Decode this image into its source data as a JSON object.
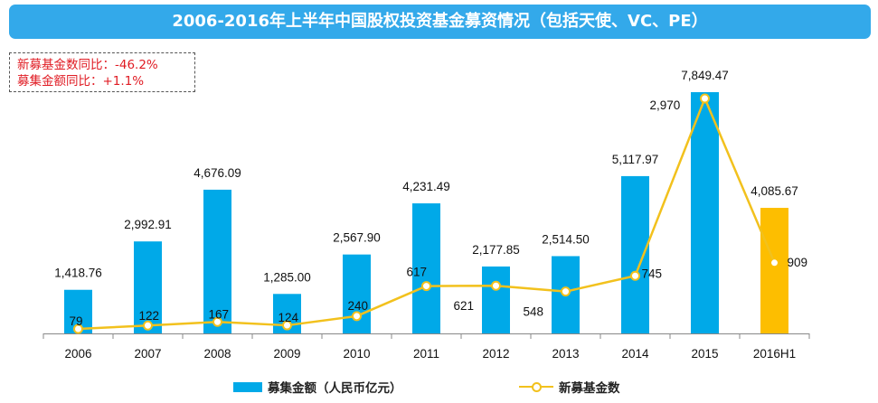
{
  "title": "2006-2016年上半年中国股权投资基金募资情况（包括天使、VC、PE）",
  "notes": [
    "新募基金数同比：-46.2%",
    "募集金额同比：+1.1%"
  ],
  "colors": {
    "title_bg": "#33a9ea",
    "bar": "#00a9e8",
    "bar_highlight": "#fdbe00",
    "line": "#f2c11d",
    "note_text": "#e01b23"
  },
  "chart_data": {
    "type": "bar",
    "title": "2006-2016年上半年中国股权投资基金募资情况（包括天使、VC、PE）",
    "categories": [
      "2006",
      "2007",
      "2008",
      "2009",
      "2010",
      "2011",
      "2012",
      "2013",
      "2014",
      "2015",
      "2016H1"
    ],
    "series": [
      {
        "name": "募集金额（人民币亿元）",
        "type": "bar",
        "axis": "left",
        "values": [
          1418.76,
          2992.91,
          4676.09,
          1285.0,
          2567.9,
          4231.49,
          2177.85,
          2514.5,
          5117.97,
          7849.47,
          4085.67
        ],
        "labels": [
          "1,418.76",
          "2,992.91",
          "4,676.09",
          "1,285.00",
          "2,567.90",
          "4,231.49",
          "2,177.85",
          "2,514.50",
          "5,117.97",
          "7,849.47",
          "4,085.67"
        ]
      },
      {
        "name": "新募基金数",
        "type": "line",
        "axis": "right",
        "values": [
          79,
          122,
          167,
          124,
          240,
          617,
          621,
          548,
          745,
          2970,
          909
        ],
        "labels": [
          "79",
          "122",
          "167",
          "124",
          "240",
          "617",
          "621",
          "548",
          "745",
          "2,970",
          "909"
        ]
      }
    ],
    "xlabel": "",
    "ylabel": "",
    "highlight_category": "2016H1",
    "legend": "bottom-center",
    "grid": false
  }
}
